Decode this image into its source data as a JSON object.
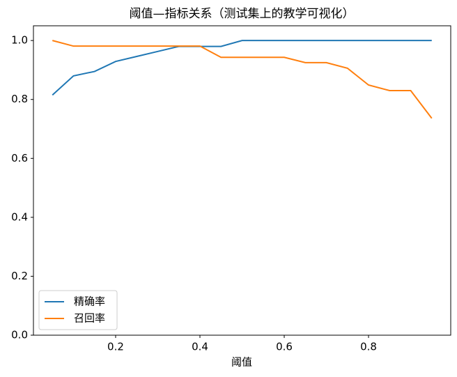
{
  "chart_data": {
    "type": "line",
    "title": "阈值—指标关系（测试集上的教学可视化）",
    "x_label": "阈值",
    "x": [
      0.05,
      0.1,
      0.15,
      0.2,
      0.25,
      0.3,
      0.35,
      0.4,
      0.45,
      0.5,
      0.55,
      0.6,
      0.65,
      0.7,
      0.75,
      0.8,
      0.85,
      0.9,
      0.95
    ],
    "series": [
      {
        "name": "精确率",
        "color": "#1f77b4",
        "values": [
          0.815,
          0.88,
          0.895,
          0.929,
          0.946,
          0.963,
          0.98,
          0.98,
          0.98,
          1.0,
          1.0,
          1.0,
          1.0,
          1.0,
          1.0,
          1.0,
          1.0,
          1.0,
          1.0
        ]
      },
      {
        "name": "召回率",
        "color": "#ff7f0e",
        "values": [
          1.0,
          0.981,
          0.981,
          0.981,
          0.981,
          0.981,
          0.981,
          0.981,
          0.943,
          0.943,
          0.943,
          0.943,
          0.925,
          0.925,
          0.906,
          0.849,
          0.83,
          0.83,
          0.736
        ]
      }
    ],
    "xlim": [
      0.005,
      0.995
    ],
    "ylim": [
      0,
      1.05
    ],
    "xticks": [
      0.2,
      0.4,
      0.6,
      0.8
    ],
    "yticks": [
      {
        "value": 0,
        "label": "0.0"
      },
      0.2,
      0.4,
      0.6,
      0.8,
      {
        "value": 1,
        "label": "1.0"
      }
    ],
    "legend": "lower left"
  }
}
